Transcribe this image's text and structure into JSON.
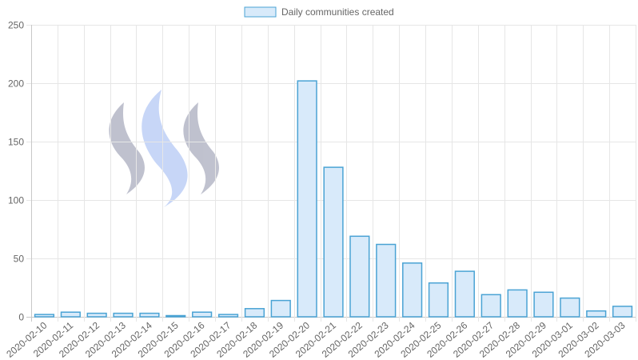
{
  "chart_data": {
    "type": "bar",
    "legend": {
      "label": "Daily communities created",
      "position": "top"
    },
    "categories": [
      "2020-02-10",
      "2020-02-11",
      "2020-02-12",
      "2020-02-13",
      "2020-02-14",
      "2020-02-15",
      "2020-02-16",
      "2020-02-17",
      "2020-02-18",
      "2020-02-19",
      "2020-02-20",
      "2020-02-21",
      "2020-02-22",
      "2020-02-23",
      "2020-02-24",
      "2020-02-25",
      "2020-02-26",
      "2020-02-27",
      "2020-02-28",
      "2020-02-29",
      "2020-03-01",
      "2020-03-02",
      "2020-03-03"
    ],
    "series": [
      {
        "name": "Daily communities created",
        "values": [
          2,
          4,
          3,
          3,
          3,
          1,
          4,
          2,
          7,
          14,
          202,
          128,
          69,
          62,
          46,
          29,
          39,
          19,
          23,
          21,
          16,
          5,
          9
        ]
      }
    ],
    "ylim": [
      0,
      250
    ],
    "yticks": [
      0,
      50,
      100,
      150,
      200,
      250
    ],
    "grid": true,
    "colors": {
      "bar_fill": "#d8eafa",
      "bar_stroke": "#4aa3d4",
      "legend_fill": "#d8eafa",
      "legend_stroke": "#4aa3d4"
    },
    "watermark": {
      "icon": "steem-logo-icon"
    }
  }
}
